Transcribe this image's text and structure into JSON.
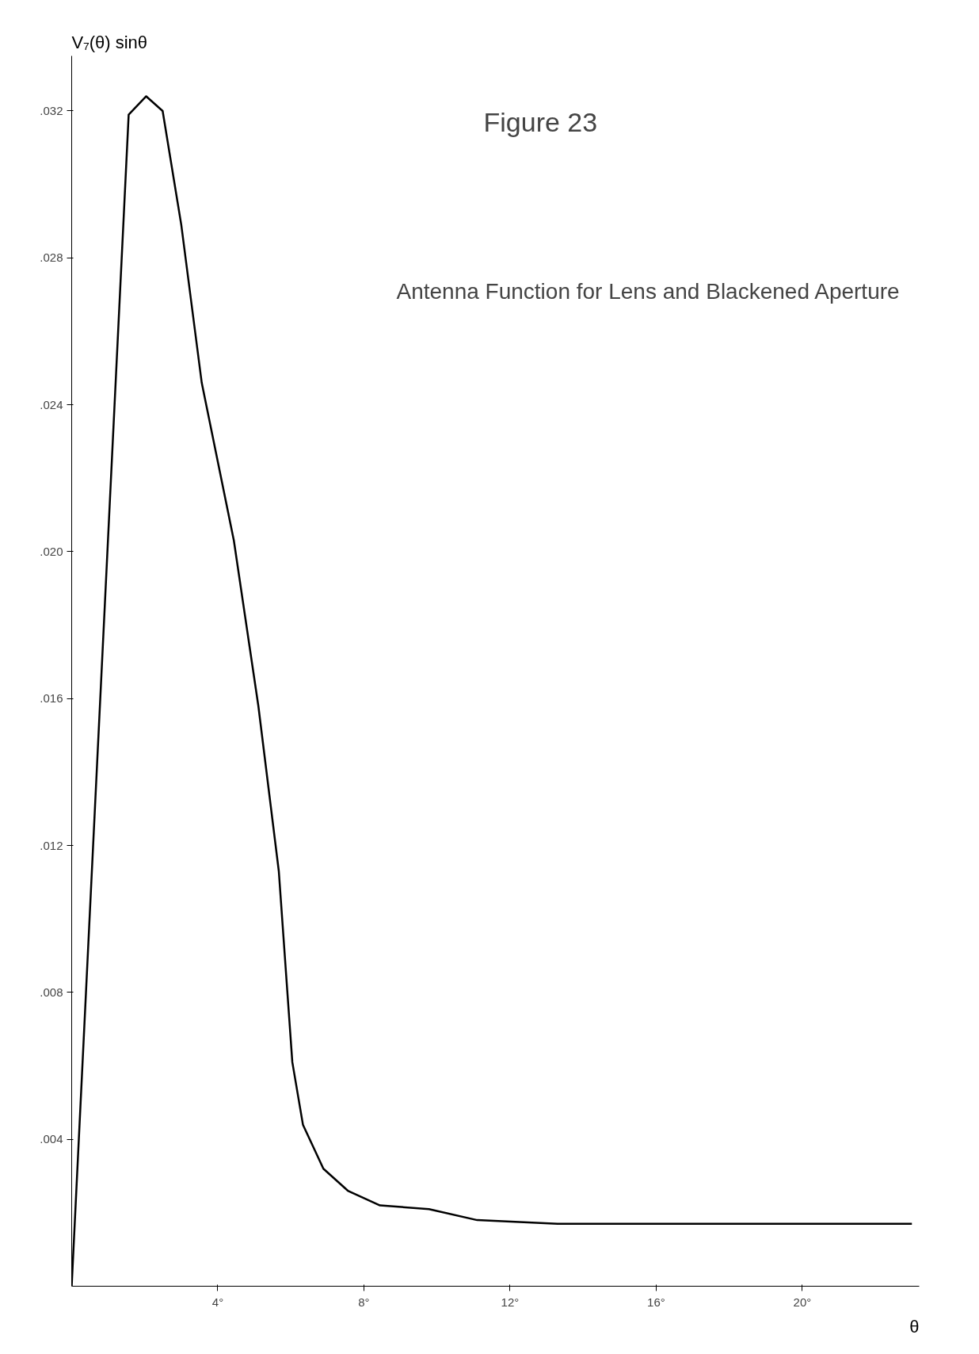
{
  "chart_data": {
    "type": "line",
    "title": "Figure 23",
    "subtitle": "Antenna Function for Lens and Blackened Aperture",
    "xlabel": "θ",
    "ylabel": "V₇(θ) sinθ",
    "x": [
      0,
      1.56,
      2.04,
      2.49,
      3.0,
      3.56,
      4.44,
      5.11,
      5.67,
      6.04,
      6.33,
      6.89,
      7.56,
      8.44,
      9.78,
      11.1,
      13.3,
      23
    ],
    "series": [
      {
        "color": "#000000",
        "values": [
          0,
          0.0319,
          0.0324,
          0.032,
          0.0289,
          0.0246,
          0.0203,
          0.0158,
          0.0113,
          0.0061,
          0.0044,
          0.0032,
          0.0026,
          0.0022,
          0.0021,
          0.0018,
          0.0017,
          0.0017
        ]
      }
    ],
    "xlim": [
      0,
      23.2
    ],
    "ylim": [
      0,
      0.0335
    ],
    "xticks": [
      {
        "value": 4,
        "label": "4°"
      },
      {
        "value": 8,
        "label": "8°"
      },
      {
        "value": 12,
        "label": "12°"
      },
      {
        "value": 16,
        "label": "16°"
      },
      {
        "value": 20,
        "label": "20°"
      }
    ],
    "yticks": [
      {
        "value": 0.004,
        "label": ".004"
      },
      {
        "value": 0.008,
        "label": ".008"
      },
      {
        "value": 0.012,
        "label": ".012"
      },
      {
        "value": 0.016,
        "label": ".016"
      },
      {
        "value": 0.02,
        "label": ".020"
      },
      {
        "value": 0.024,
        "label": ".024"
      },
      {
        "value": 0.028,
        "label": ".028"
      },
      {
        "value": 0.032,
        "label": ".032"
      }
    ],
    "grid": false,
    "marker": "none",
    "line_style": "solid"
  }
}
